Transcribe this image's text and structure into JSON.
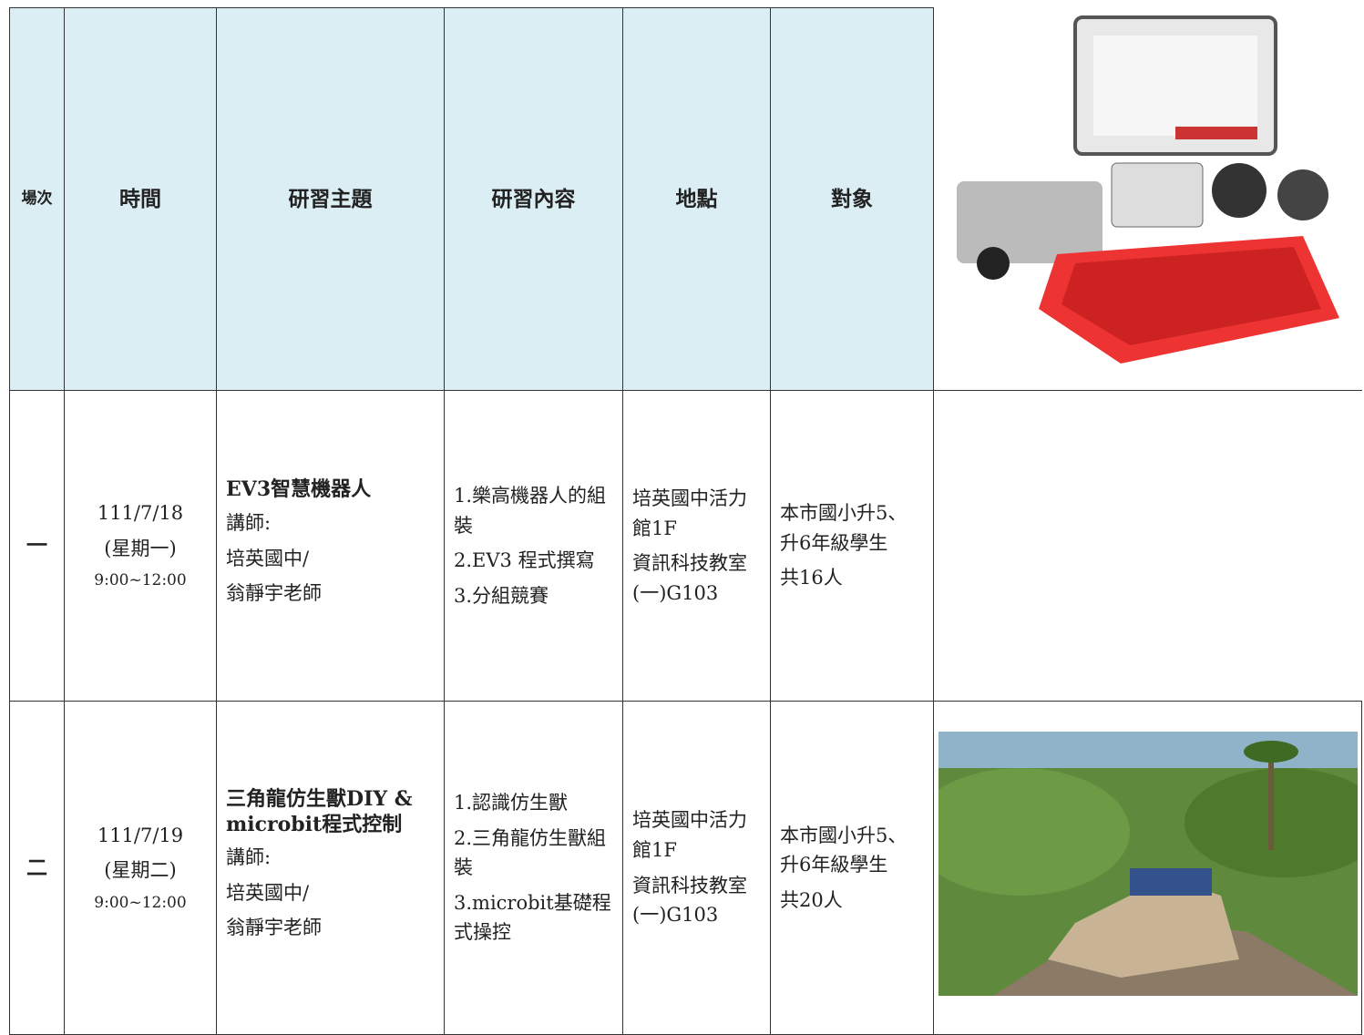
{
  "table": {
    "header": [
      "場次",
      "時間",
      "研習主題",
      "研習內容",
      "地點",
      "對象"
    ],
    "rows": [
      {
        "session": "一",
        "date": "111/7/18",
        "weekday": "(星期一)",
        "time": "9:00~12:00",
        "topic": [
          "EV3智慧機器人"
        ],
        "lecturer": [
          "講師:",
          "培英國中/",
          "翁靜宇老師"
        ],
        "content": [
          "1.樂高機器人的組裝",
          "2.EV3 程式撰寫",
          "3.分組競賽"
        ],
        "location": [
          "培英國中活力館1F",
          "資訊科技教室(一)G103"
        ],
        "audience": [
          "本市國小升5、升6年級學生",
          "共16人"
        ]
      },
      {
        "session": "二",
        "date": "111/7/19",
        "weekday": "(星期二)",
        "time": "9:00~12:00",
        "topic": [
          "三角龍仿生獸DIY &",
          "microbit程式控制"
        ],
        "lecturer": [
          "講師:",
          "培英國中/",
          "翁靜宇老師"
        ],
        "content": [
          "1.認識仿生獸",
          "2.三角龍仿生獸組裝",
          "3.microbit基礎程式操控"
        ],
        "location": [
          "培英國中活力館1F",
          "資訊科技教室(一)G103"
        ],
        "audience": [
          "本市國小升5、升6年級學生",
          "共20人"
        ]
      }
    ]
  }
}
